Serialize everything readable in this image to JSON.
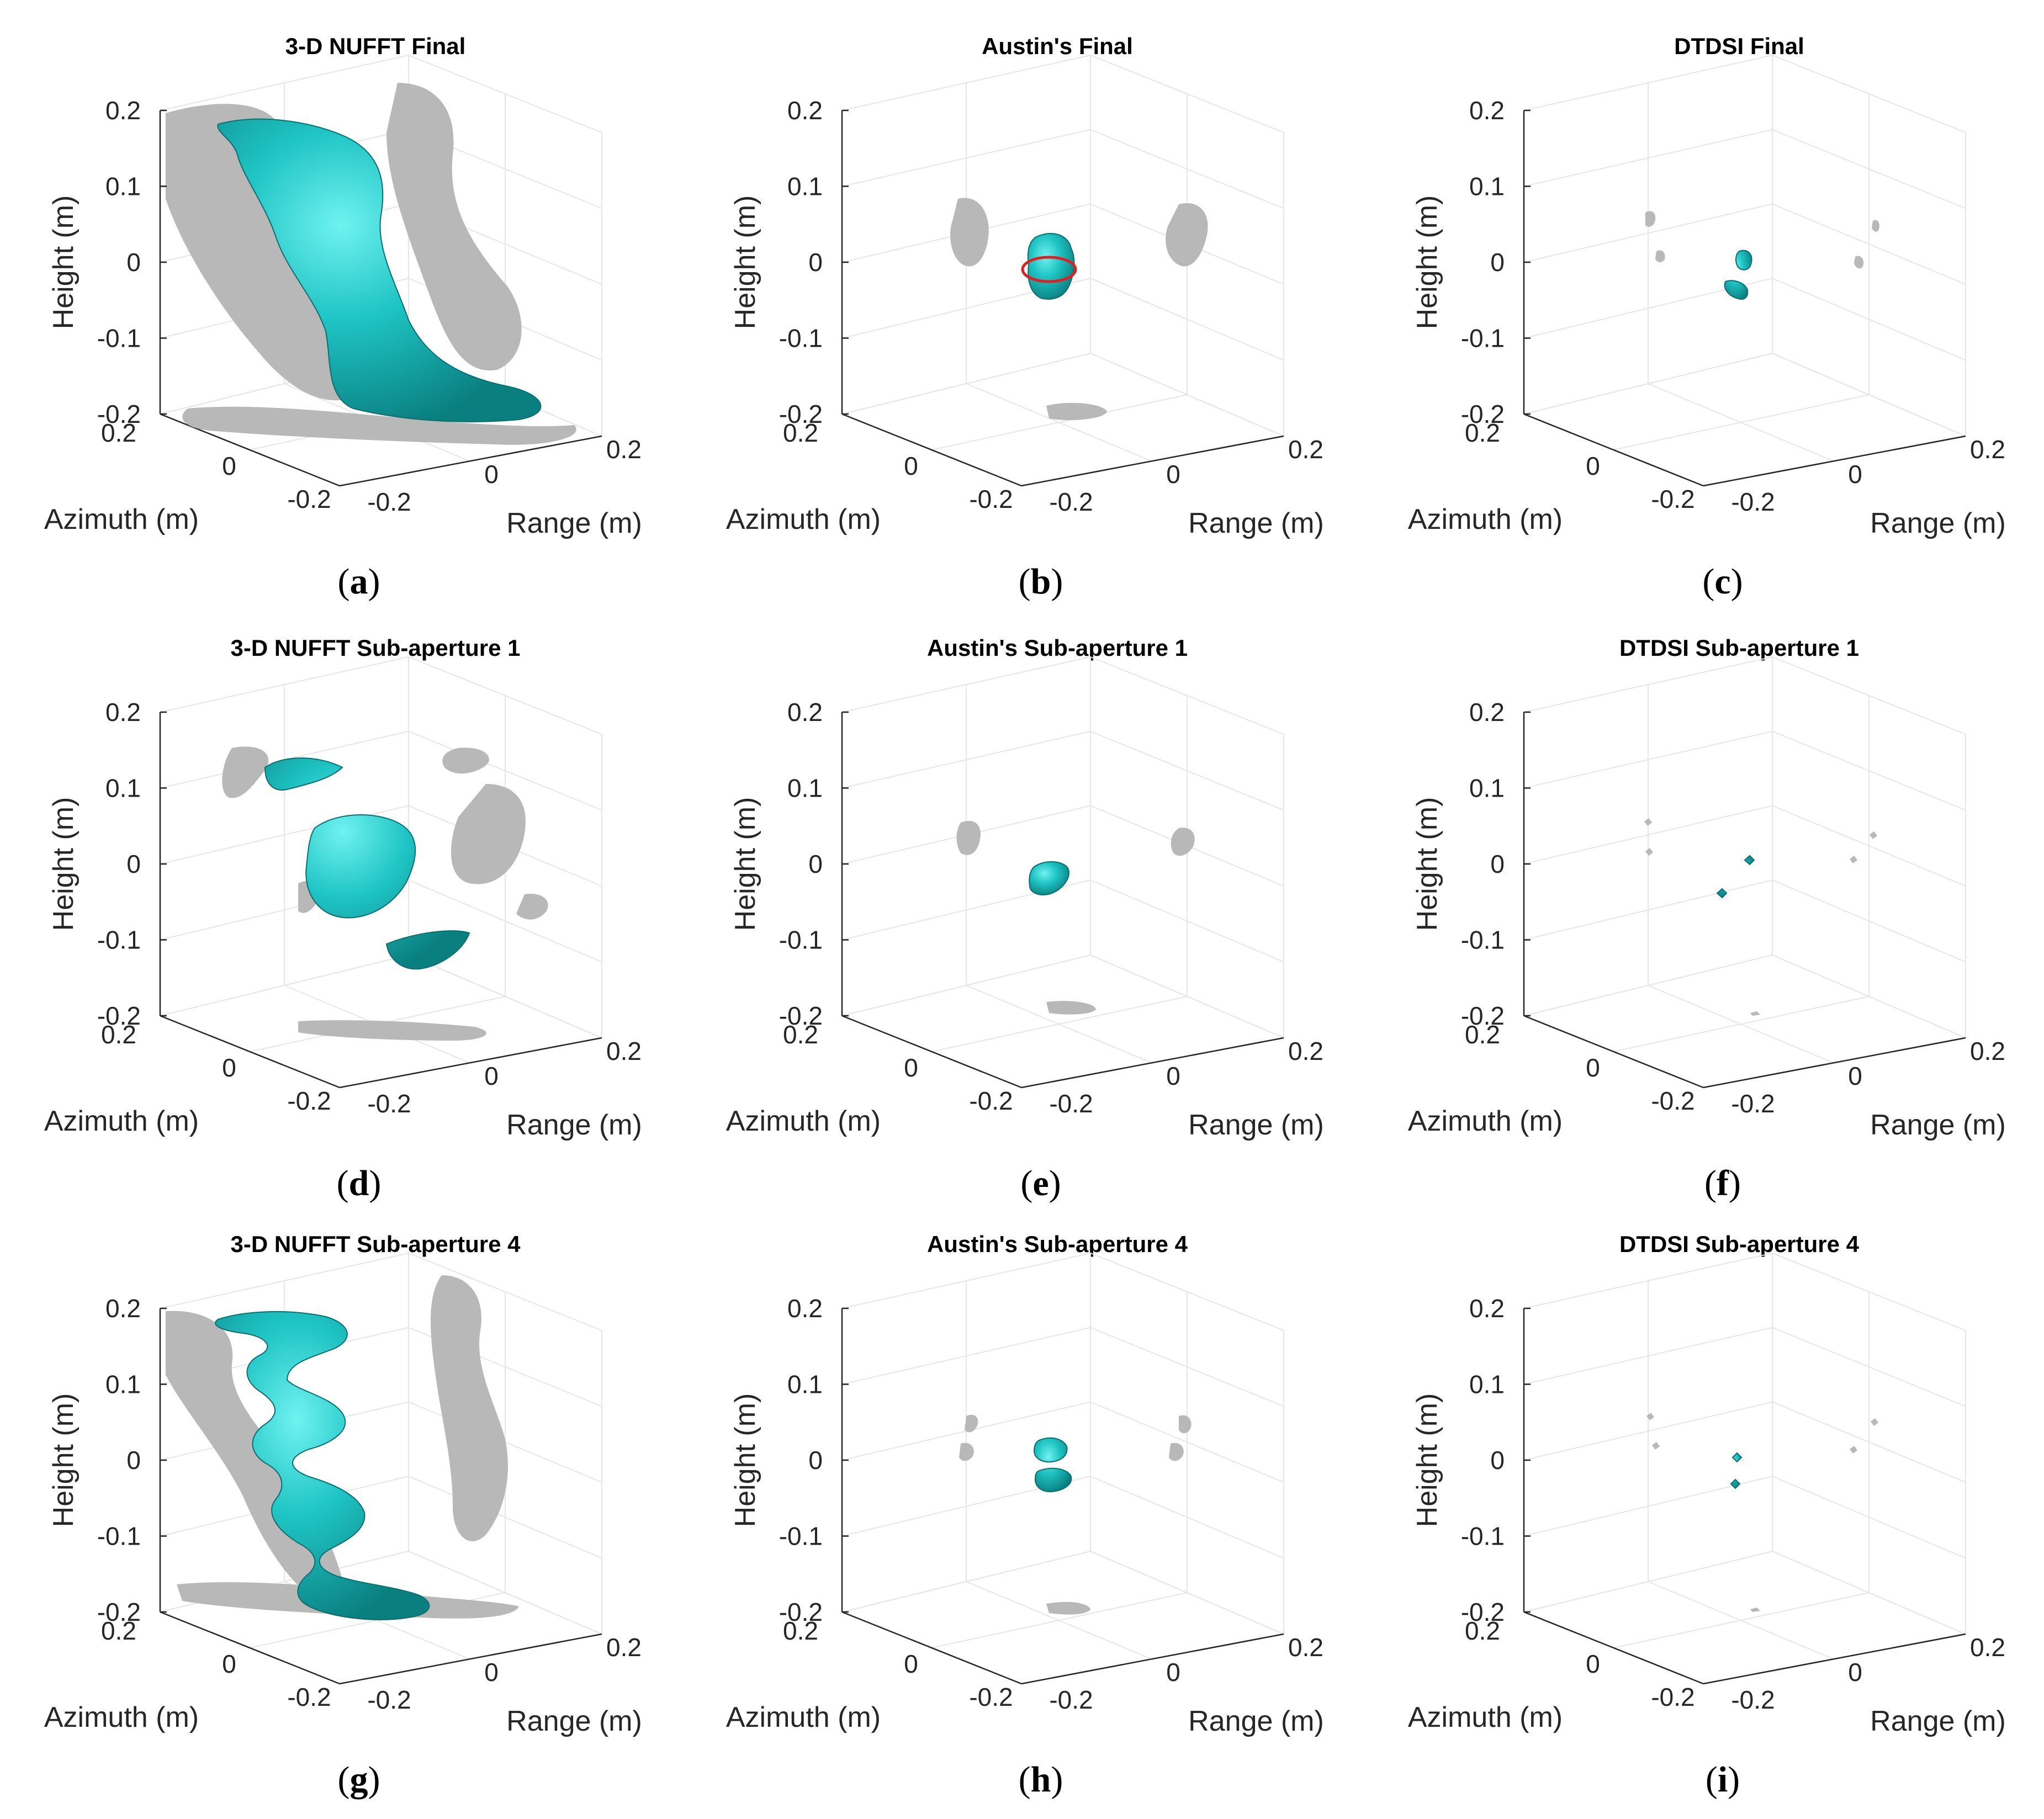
{
  "figure": {
    "colors": {
      "iso_surface": "#1bbfc0",
      "iso_surface_dark": "#0c8a8a",
      "shadow": "#b8b8b8",
      "grid": "#e6e6e6",
      "highlight_ring": "#e02020"
    },
    "panels": [
      {
        "id": "a",
        "title": "3-D NUFFT  Final",
        "label": "a"
      },
      {
        "id": "b",
        "title": "Austin's  Final",
        "label": "b"
      },
      {
        "id": "c",
        "title": "DTDSI  Final",
        "label": "c"
      },
      {
        "id": "d",
        "title": "3-D NUFFT  Sub-aperture 1",
        "label": "d"
      },
      {
        "id": "e",
        "title": "Austin's  Sub-aperture 1",
        "label": "e"
      },
      {
        "id": "f",
        "title": "DTDSI  Sub-aperture 1",
        "label": "f"
      },
      {
        "id": "g",
        "title": "3-D NUFFT  Sub-aperture 4",
        "label": "g"
      },
      {
        "id": "h",
        "title": "Austin's  Sub-aperture 4",
        "label": "h"
      },
      {
        "id": "i",
        "title": "DTDSI  Sub-aperture 4",
        "label": "i"
      }
    ]
  },
  "chart_data": [
    {
      "panel": "a",
      "type": "isosurface-3d",
      "title": "3-D NUFFT  Final",
      "xlabel": "Range (m)",
      "ylabel": "Azimuth (m)",
      "zlabel": "Height (m)",
      "x_ticks": [
        "-0.2",
        "0",
        "0.2"
      ],
      "y_ticks": [
        "0.2",
        "0",
        "-0.2"
      ],
      "z_ticks": [
        "0.2",
        "0.1",
        "0",
        "-0.1",
        "-0.2"
      ],
      "xlim": [
        -0.2,
        0.2
      ],
      "ylim": [
        -0.2,
        0.2
      ],
      "zlim": [
        -0.2,
        0.2
      ],
      "grid": true
    },
    {
      "panel": "b",
      "type": "isosurface-3d",
      "title": "Austin's  Final",
      "xlabel": "Range (m)",
      "ylabel": "Azimuth (m)",
      "zlabel": "Height (m)",
      "x_ticks": [
        "-0.2",
        "0",
        "0.2"
      ],
      "y_ticks": [
        "0.2",
        "0",
        "-0.2"
      ],
      "z_ticks": [
        "0.2",
        "0.1",
        "0",
        "-0.1",
        "-0.2"
      ],
      "xlim": [
        -0.2,
        0.2
      ],
      "ylim": [
        -0.2,
        0.2
      ],
      "zlim": [
        -0.2,
        0.2
      ],
      "grid": true
    },
    {
      "panel": "c",
      "type": "isosurface-3d",
      "title": "DTDSI  Final",
      "xlabel": "Range (m)",
      "ylabel": "Azimuth (m)",
      "zlabel": "Height (m)",
      "x_ticks": [
        "-0.2",
        "0",
        "0.2"
      ],
      "y_ticks": [
        "0.2",
        "0",
        "-0.2"
      ],
      "z_ticks": [
        "0.2",
        "0.1",
        "0",
        "-0.1",
        "-0.2"
      ],
      "xlim": [
        -0.2,
        0.2
      ],
      "ylim": [
        -0.2,
        0.2
      ],
      "zlim": [
        -0.2,
        0.2
      ],
      "grid": true
    },
    {
      "panel": "d",
      "type": "isosurface-3d",
      "title": "3-D NUFFT  Sub-aperture 1",
      "xlabel": "Range (m)",
      "ylabel": "Azimuth (m)",
      "zlabel": "Height (m)",
      "x_ticks": [
        "-0.2",
        "0",
        "0.2"
      ],
      "y_ticks": [
        "0.2",
        "0",
        "-0.2"
      ],
      "z_ticks": [
        "0.2",
        "0.1",
        "0",
        "-0.1",
        "-0.2"
      ],
      "xlim": [
        -0.2,
        0.2
      ],
      "ylim": [
        -0.2,
        0.2
      ],
      "zlim": [
        -0.2,
        0.2
      ],
      "grid": true
    },
    {
      "panel": "e",
      "type": "isosurface-3d",
      "title": "Austin's  Sub-aperture 1",
      "xlabel": "Range (m)",
      "ylabel": "Azimuth (m)",
      "zlabel": "Height (m)",
      "x_ticks": [
        "-0.2",
        "0",
        "0.2"
      ],
      "y_ticks": [
        "0.2",
        "0",
        "-0.2"
      ],
      "z_ticks": [
        "0.2",
        "0.1",
        "0",
        "-0.1",
        "-0.2"
      ],
      "xlim": [
        -0.2,
        0.2
      ],
      "ylim": [
        -0.2,
        0.2
      ],
      "zlim": [
        -0.2,
        0.2
      ],
      "grid": true
    },
    {
      "panel": "f",
      "type": "isosurface-3d",
      "title": "DTDSI  Sub-aperture 1",
      "xlabel": "Range (m)",
      "ylabel": "Azimuth (m)",
      "zlabel": "Height (m)",
      "x_ticks": [
        "-0.2",
        "0",
        "0.2"
      ],
      "y_ticks": [
        "0.2",
        "0",
        "-0.2"
      ],
      "z_ticks": [
        "0.2",
        "0.1",
        "0",
        "-0.1",
        "-0.2"
      ],
      "xlim": [
        -0.2,
        0.2
      ],
      "ylim": [
        -0.2,
        0.2
      ],
      "zlim": [
        -0.2,
        0.2
      ],
      "grid": true
    },
    {
      "panel": "g",
      "type": "isosurface-3d",
      "title": "3-D NUFFT  Sub-aperture 4",
      "xlabel": "Range (m)",
      "ylabel": "Azimuth (m)",
      "zlabel": "Height (m)",
      "x_ticks": [
        "-0.2",
        "0",
        "0.2"
      ],
      "y_ticks": [
        "0.2",
        "0",
        "-0.2"
      ],
      "z_ticks": [
        "0.2",
        "0.1",
        "0",
        "-0.1",
        "-0.2"
      ],
      "xlim": [
        -0.2,
        0.2
      ],
      "ylim": [
        -0.2,
        0.2
      ],
      "zlim": [
        -0.2,
        0.2
      ],
      "grid": true
    },
    {
      "panel": "h",
      "type": "isosurface-3d",
      "title": "Austin's  Sub-aperture 4",
      "xlabel": "Range (m)",
      "ylabel": "Azimuth (m)",
      "zlabel": "Height (m)",
      "x_ticks": [
        "-0.2",
        "0",
        "0.2"
      ],
      "y_ticks": [
        "0.2",
        "0",
        "-0.2"
      ],
      "z_ticks": [
        "0.2",
        "0.1",
        "0",
        "-0.1",
        "-0.2"
      ],
      "xlim": [
        -0.2,
        0.2
      ],
      "ylim": [
        -0.2,
        0.2
      ],
      "zlim": [
        -0.2,
        0.2
      ],
      "grid": true
    },
    {
      "panel": "i",
      "type": "isosurface-3d",
      "title": "DTDSI  Sub-aperture 4",
      "xlabel": "Range (m)",
      "ylabel": "Azimuth (m)",
      "zlabel": "Height (m)",
      "x_ticks": [
        "-0.2",
        "0",
        "0.2"
      ],
      "y_ticks": [
        "0.2",
        "0",
        "-0.2"
      ],
      "z_ticks": [
        "0.2",
        "0.1",
        "0",
        "-0.1",
        "-0.2"
      ],
      "xlim": [
        -0.2,
        0.2
      ],
      "ylim": [
        -0.2,
        0.2
      ],
      "zlim": [
        -0.2,
        0.2
      ],
      "grid": true
    }
  ]
}
